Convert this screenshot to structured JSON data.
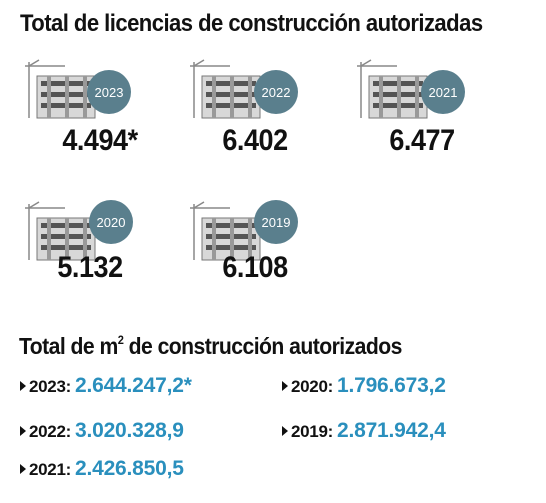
{
  "title_licencias": "Total de licencias de construcción autorizadas",
  "title_m2": {
    "prefix": "Total de m",
    "sup": "2",
    "suffix": " de construcción autorizados"
  },
  "colors": {
    "badge": "#5a7f8d",
    "value_blue": "#2a8fbd",
    "text": "#111111"
  },
  "icon": "building-under-construction-icon",
  "chart_data": [
    {
      "type": "table",
      "title": "Total de licencias de construcción autorizadas",
      "categories": [
        "2023",
        "2022",
        "2021",
        "2020",
        "2019"
      ],
      "values": [
        4494,
        6402,
        6477,
        5132,
        6108
      ],
      "labels": [
        "4.494*",
        "6.402",
        "6.477",
        "5.132",
        "6.108"
      ]
    },
    {
      "type": "table",
      "title": "Total de m2 de construcción autorizados",
      "categories": [
        "2023",
        "2022",
        "2021",
        "2020",
        "2019"
      ],
      "values": [
        2644247.2,
        3020328.9,
        2426850.5,
        1796673.2,
        2871942.4
      ],
      "labels": [
        "2.644.247,2*",
        "3.020.328,9",
        "2.426.850,5",
        "1.796.673,2",
        "2.871.942,4"
      ]
    }
  ],
  "licencias": [
    {
      "year": "2023",
      "value": "4.494*"
    },
    {
      "year": "2022",
      "value": "6.402"
    },
    {
      "year": "2021",
      "value": "6.477"
    },
    {
      "year": "2020",
      "value": "5.132"
    },
    {
      "year": "2019",
      "value": "6.108"
    }
  ],
  "m2": [
    {
      "year": "2023:",
      "value": "2.644.247,2*"
    },
    {
      "year": "2022:",
      "value": "3.020.328,9"
    },
    {
      "year": "2021:",
      "value": "2.426.850,5"
    },
    {
      "year": "2020:",
      "value": "1.796.673,2"
    },
    {
      "year": "2019:",
      "value": "2.871.942,4"
    }
  ]
}
